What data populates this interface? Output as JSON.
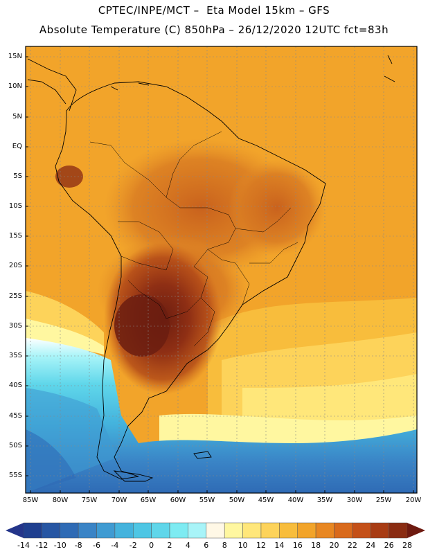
{
  "title": {
    "line1": "CPTEC/INPE/MCT –  Eta Model 15km – GFS",
    "line2": "Absolute Temperature (C) 850hPa – 26/12/2020 12UTC fct=83h"
  },
  "map": {
    "lat_ticks": [
      "15N",
      "10N",
      "5N",
      "EQ",
      "5S",
      "10S",
      "15S",
      "20S",
      "25S",
      "30S",
      "35S",
      "40S",
      "45S",
      "50S",
      "55S"
    ],
    "lon_ticks": [
      "85W",
      "80W",
      "75W",
      "70W",
      "65W",
      "60W",
      "55W",
      "50W",
      "45W",
      "40W",
      "35W",
      "30W",
      "25W",
      "20W"
    ],
    "field": "temperature-850hPa"
  },
  "colorbar": {
    "labels": [
      "-14",
      "-12",
      "-10",
      "-8",
      "-6",
      "-4",
      "-2",
      "0",
      "2",
      "4",
      "6",
      "8",
      "10",
      "12",
      "14",
      "16",
      "18",
      "20",
      "22",
      "24",
      "26",
      "28"
    ],
    "colors": [
      "#1f3f8f",
      "#2756a3",
      "#2f6bb5",
      "#3a84c6",
      "#3f9bd2",
      "#44b3dd",
      "#4ec6e4",
      "#5fd6ea",
      "#7debf2",
      "#a8f4f8",
      "#fff8e6",
      "#fff7a0",
      "#ffe77a",
      "#fdd35a",
      "#f8bd3c",
      "#f2a42a",
      "#e88722",
      "#d96a1c",
      "#c45018",
      "#a83c14",
      "#8a2c12"
    ],
    "end_left_color": "#24358a",
    "end_right_color": "#6e1a10"
  }
}
